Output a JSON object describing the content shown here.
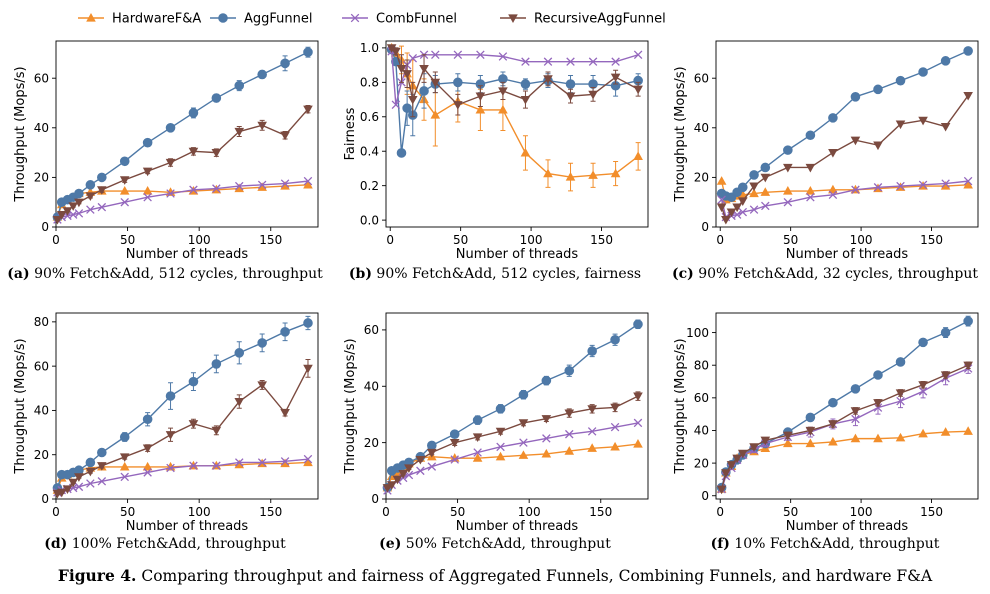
{
  "figure_caption": {
    "label": "Figure 4.",
    "text": "Comparing throughput and fairness of Aggregated Funnels, Combining Funnels, and hardware F&A"
  },
  "legend": [
    {
      "name": "HardwareF&A",
      "color": "#f28e2b",
      "marker": "triangle-up"
    },
    {
      "name": "AggFunnel",
      "color": "#4e79a7",
      "marker": "circle"
    },
    {
      "name": "CombFunnel",
      "color": "#9467bd",
      "marker": "x"
    },
    {
      "name": "RecursiveAggFunnel",
      "color": "#7b4a3f",
      "marker": "triangle-down"
    }
  ],
  "chart_data": [
    {
      "id": "a",
      "type": "line",
      "caption_label": "(a)",
      "caption_text": "90% Fetch&Add, 512 cycles, throughput",
      "xlabel": "Number of threads",
      "ylabel": "Throughput (Mops/s)",
      "xlim": [
        0,
        183
      ],
      "ylim": [
        0,
        75
      ],
      "xticks": [
        0,
        50,
        100,
        150
      ],
      "yticks": [
        0,
        20,
        40,
        60
      ],
      "x": [
        1,
        4,
        8,
        12,
        16,
        24,
        32,
        48,
        64,
        80,
        96,
        112,
        128,
        144,
        160,
        176
      ],
      "series": [
        {
          "name": "HardwareF&A",
          "values": [
            4,
            9,
            11,
            12,
            13.5,
            14,
            14.5,
            14.5,
            14.5,
            14,
            14.5,
            15,
            15.5,
            16,
            16.5,
            17
          ]
        },
        {
          "name": "AggFunnel",
          "values": [
            4,
            10,
            11,
            12,
            13.5,
            17,
            20,
            26.5,
            34,
            40,
            46,
            52,
            57,
            61.5,
            66,
            70.5
          ],
          "errors": [
            0.5,
            0.5,
            0.5,
            0.5,
            0.6,
            0.8,
            1,
            1,
            1,
            1,
            2,
            1.5,
            2,
            1.5,
            3,
            2
          ]
        },
        {
          "name": "CombFunnel",
          "values": [
            3,
            4,
            4.5,
            5,
            5.5,
            7,
            8,
            10,
            12,
            13.5,
            15,
            15.5,
            16.5,
            17,
            17.5,
            18.5
          ]
        },
        {
          "name": "RecursiveAggFunnel",
          "values": [
            3,
            5,
            6.5,
            8.5,
            10,
            12.5,
            15,
            19,
            22.5,
            26,
            30.5,
            30,
            38.5,
            41,
            37,
            47.5
          ],
          "errors": [
            0.5,
            0.5,
            0.5,
            0.5,
            0.6,
            0.8,
            1,
            1,
            1,
            1.5,
            1.5,
            1.5,
            2,
            2,
            1.5,
            1.5
          ]
        }
      ]
    },
    {
      "id": "b",
      "type": "line",
      "caption_label": "(b)",
      "caption_text": "90% Fetch&Add, 512 cycles, fairness",
      "xlabel": "Number of threads",
      "ylabel": "Fairness",
      "xlim": [
        -3,
        183
      ],
      "ylim": [
        -0.04,
        1.04
      ],
      "xticks": [
        0,
        50,
        100,
        150
      ],
      "yticks": [
        0.0,
        0.2,
        0.4,
        0.6,
        0.8,
        1.0
      ],
      "x": [
        1,
        4,
        8,
        12,
        16,
        24,
        32,
        48,
        64,
        80,
        96,
        112,
        128,
        144,
        160,
        176
      ],
      "series": [
        {
          "name": "HardwareF&A",
          "values": [
            1.0,
            0.97,
            0.93,
            0.85,
            0.78,
            0.7,
            0.61,
            0.69,
            0.64,
            0.64,
            0.39,
            0.27,
            0.25,
            0.26,
            0.27,
            0.37
          ],
          "errors": [
            0.01,
            0.03,
            0.08,
            0.12,
            0.15,
            0.12,
            0.18,
            0.12,
            0.12,
            0.12,
            0.1,
            0.08,
            0.08,
            0.07,
            0.07,
            0.08
          ]
        },
        {
          "name": "AggFunnel",
          "values": [
            0.99,
            0.92,
            0.39,
            0.65,
            0.61,
            0.75,
            0.79,
            0.8,
            0.79,
            0.82,
            0.79,
            0.81,
            0.79,
            0.79,
            0.78,
            0.81
          ],
          "errors": [
            0.01,
            0.02,
            0.02,
            0.1,
            0.12,
            0.1,
            0.05,
            0.05,
            0.05,
            0.04,
            0.03,
            0.04,
            0.05,
            0.05,
            0.06,
            0.04
          ]
        },
        {
          "name": "CombFunnel",
          "values": [
            0.98,
            0.67,
            0.8,
            0.9,
            0.94,
            0.96,
            0.96,
            0.96,
            0.96,
            0.95,
            0.92,
            0.92,
            0.92,
            0.92,
            0.92,
            0.96
          ]
        },
        {
          "name": "RecursiveAggFunnel",
          "values": [
            1.0,
            0.98,
            0.88,
            0.85,
            0.7,
            0.88,
            0.8,
            0.67,
            0.72,
            0.75,
            0.7,
            0.82,
            0.72,
            0.73,
            0.83,
            0.76
          ],
          "errors": [
            0.01,
            0.02,
            0.08,
            0.08,
            0.1,
            0.08,
            0.06,
            0.06,
            0.06,
            0.05,
            0.05,
            0.04,
            0.04,
            0.04,
            0.04,
            0.04
          ]
        }
      ]
    },
    {
      "id": "c",
      "type": "line",
      "caption_label": "(c)",
      "caption_text": "90% Fetch&Add, 32 cycles, throughput",
      "xlabel": "Number of threads",
      "ylabel": "Throughput (Mops/s)",
      "xlim": [
        -3,
        183
      ],
      "ylim": [
        0,
        75
      ],
      "xticks": [
        0,
        50,
        100,
        150
      ],
      "yticks": [
        0,
        20,
        40,
        60
      ],
      "x": [
        1,
        4,
        8,
        12,
        16,
        24,
        32,
        48,
        64,
        80,
        96,
        112,
        128,
        144,
        160,
        176
      ],
      "series": [
        {
          "name": "HardwareF&A",
          "values": [
            18.5,
            11,
            11.5,
            12.5,
            13,
            13.5,
            14,
            14.5,
            14.5,
            15,
            15,
            15.5,
            16,
            16.5,
            16.5,
            17
          ]
        },
        {
          "name": "AggFunnel",
          "values": [
            13.5,
            12.5,
            12,
            14,
            16,
            21,
            24,
            31,
            37,
            44,
            52.5,
            55.5,
            59,
            62.5,
            67,
            71
          ]
        },
        {
          "name": "CombFunnel",
          "values": [
            11,
            4,
            4.5,
            5,
            6,
            7,
            8.5,
            10,
            12,
            13,
            15,
            16,
            16.5,
            17,
            17.5,
            18.5
          ]
        },
        {
          "name": "RecursiveAggFunnel",
          "values": [
            8,
            3,
            6,
            8,
            10.5,
            16.5,
            20,
            24,
            24,
            30,
            35,
            33,
            41.5,
            43,
            40.5,
            53
          ]
        }
      ]
    },
    {
      "id": "d",
      "type": "line",
      "caption_label": "(d)",
      "caption_text": "100% Fetch&Add, throughput",
      "xlabel": "Number of threads",
      "ylabel": "Throughput (Mops/s)",
      "xlim": [
        0,
        183
      ],
      "ylim": [
        0,
        84
      ],
      "xticks": [
        0,
        50,
        100,
        150
      ],
      "yticks": [
        0,
        20,
        40,
        60,
        80
      ],
      "x": [
        1,
        4,
        8,
        12,
        16,
        24,
        32,
        48,
        64,
        80,
        96,
        112,
        128,
        144,
        160,
        176
      ],
      "series": [
        {
          "name": "HardwareF&A",
          "values": [
            4,
            9.5,
            11,
            12,
            13,
            14,
            14.5,
            14.5,
            14.5,
            14.5,
            15,
            15,
            15.5,
            16,
            16,
            16.5
          ]
        },
        {
          "name": "AggFunnel",
          "values": [
            5,
            11,
            11,
            12,
            13,
            16.5,
            21,
            28,
            36,
            46.5,
            53,
            61,
            66,
            70.5,
            75.5,
            79.5
          ],
          "errors": [
            0.5,
            0.5,
            0.5,
            0.5,
            0.6,
            1,
            1.5,
            2,
            3,
            6,
            4,
            4,
            5,
            4,
            4,
            3
          ]
        },
        {
          "name": "CombFunnel",
          "values": [
            3,
            4,
            4.5,
            5,
            5.5,
            7,
            8,
            10,
            12,
            14,
            15,
            15,
            16.5,
            16.5,
            17,
            18
          ]
        },
        {
          "name": "RecursiveAggFunnel",
          "values": [
            2.5,
            3,
            4.5,
            7.5,
            10,
            12.5,
            15,
            19,
            23,
            29,
            34,
            31,
            44,
            51.5,
            39,
            59
          ],
          "errors": [
            0.5,
            0.5,
            0.5,
            0.5,
            0.6,
            0.8,
            1,
            1,
            1.5,
            3,
            2,
            2,
            3,
            2,
            1.5,
            4
          ]
        }
      ]
    },
    {
      "id": "e",
      "type": "line",
      "caption_label": "(e)",
      "caption_text": "50% Fetch&Add, throughput",
      "xlabel": "Number of threads",
      "ylabel": "Throughput (Mops/s)",
      "xlim": [
        0,
        183
      ],
      "ylim": [
        0,
        66
      ],
      "xticks": [
        0,
        50,
        100,
        150
      ],
      "yticks": [
        0,
        20,
        40,
        60
      ],
      "x": [
        1,
        4,
        8,
        12,
        16,
        24,
        32,
        48,
        64,
        80,
        96,
        112,
        128,
        144,
        160,
        176
      ],
      "series": [
        {
          "name": "HardwareF&A",
          "values": [
            4,
            8,
            9.5,
            11,
            12.5,
            14.5,
            15,
            14.5,
            14.5,
            15,
            15.5,
            16,
            17,
            18,
            18.5,
            19.5
          ]
        },
        {
          "name": "AggFunnel",
          "values": [
            4,
            10,
            11,
            12,
            13,
            15,
            19,
            23,
            28,
            32,
            37,
            42,
            45.5,
            52.5,
            56.5,
            62
          ],
          "errors": [
            0.3,
            0.4,
            0.4,
            0.4,
            0.5,
            0.6,
            0.8,
            1,
            1.5,
            1.5,
            1.5,
            1.5,
            2,
            2,
            2,
            1.5
          ]
        },
        {
          "name": "CombFunnel",
          "values": [
            3,
            5,
            6.5,
            7.5,
            8.5,
            10,
            11.5,
            14,
            16.5,
            18.5,
            20,
            21.5,
            23,
            24,
            25.5,
            27
          ]
        },
        {
          "name": "RecursiveAggFunnel",
          "values": [
            4,
            5,
            7,
            9,
            11,
            14,
            16.5,
            20,
            22,
            24,
            27,
            28.5,
            30.5,
            32,
            32.5,
            36.5
          ],
          "errors": [
            0.3,
            0.4,
            0.4,
            0.4,
            0.5,
            0.6,
            0.8,
            1,
            1,
            1,
            1,
            1,
            1.5,
            1.5,
            1.5,
            1.5
          ]
        }
      ]
    },
    {
      "id": "f",
      "type": "line",
      "caption_label": "(f)",
      "caption_text": "10% Fetch&Add, throughput",
      "xlabel": "Number of threads",
      "ylabel": "Throughput (Mops/s)",
      "xlim": [
        -3,
        183
      ],
      "ylim": [
        -2,
        112
      ],
      "xticks": [
        0,
        50,
        100,
        150
      ],
      "yticks": [
        0,
        20,
        40,
        60,
        80,
        100
      ],
      "x": [
        1,
        4,
        8,
        12,
        16,
        24,
        32,
        48,
        64,
        80,
        96,
        112,
        128,
        144,
        160,
        176
      ],
      "series": [
        {
          "name": "HardwareF&A",
          "values": [
            4,
            14,
            18,
            23,
            25,
            27,
            29,
            32,
            32,
            33,
            35,
            35,
            35.5,
            38,
            39,
            39.5
          ]
        },
        {
          "name": "AggFunnel",
          "values": [
            5,
            14.5,
            19,
            22,
            25,
            29,
            32,
            39,
            48,
            57,
            65.5,
            74,
            82,
            94,
            100,
            107
          ],
          "errors": [
            0.5,
            1,
            1,
            1,
            1,
            1.5,
            1.5,
            2,
            2,
            2,
            2,
            2,
            2,
            2,
            3,
            3
          ]
        },
        {
          "name": "CombFunnel",
          "values": [
            4,
            12,
            17,
            22,
            25,
            28,
            32,
            36,
            39,
            44,
            47,
            54,
            58,
            64,
            72,
            78
          ],
          "errors": [
            0.5,
            1,
            1,
            1,
            1,
            1.5,
            2,
            2,
            3,
            3,
            4,
            4,
            4,
            4,
            4,
            3
          ]
        },
        {
          "name": "RecursiveAggFunnel",
          "values": [
            4,
            14,
            19,
            23,
            26,
            30,
            34,
            37,
            40,
            44,
            52,
            57,
            63,
            68,
            74,
            80
          ],
          "errors": [
            0.5,
            1,
            1,
            1,
            1,
            1.5,
            1.5,
            2,
            2,
            2,
            2,
            2,
            2,
            2,
            2,
            2
          ]
        }
      ]
    }
  ]
}
